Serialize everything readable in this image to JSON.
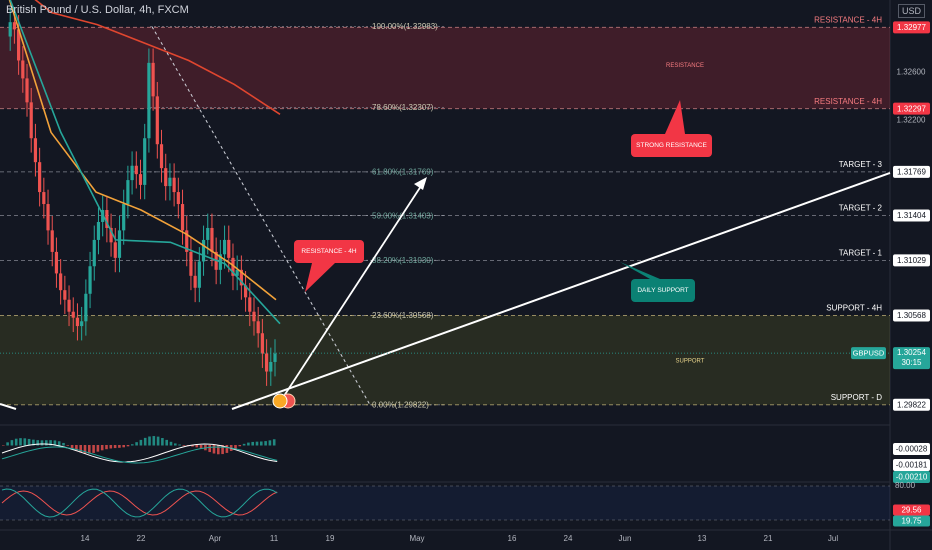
{
  "symbol_title": "British Pound / U.S. Dollar, 4h, FXCM",
  "currency": "USD",
  "chart_data": {
    "type": "candlestick",
    "title": "British Pound / U.S. Dollar, 4h, FXCM",
    "price_axis": {
      "range": [
        1.2972,
        1.3308
      ],
      "ticks": [
        1.326,
        1.322,
        1.318,
        1.314,
        1.31,
        1.306,
        1.302
      ],
      "tick_labels": [
        "1.32600",
        "1.32200",
        "",
        "",
        "",
        "",
        ""
      ]
    },
    "time_axis": {
      "labels": [
        "14",
        "22",
        "Apr",
        "11",
        "19",
        "May",
        "16",
        "24",
        "Jun",
        "13",
        "21",
        "Jul"
      ]
    },
    "price_path": [
      1.329,
      1.3302,
      1.3296,
      1.327,
      1.3255,
      1.3235,
      1.3205,
      1.3185,
      1.316,
      1.315,
      1.3128,
      1.311,
      1.3092,
      1.3078,
      1.307,
      1.306,
      1.3055,
      1.3048,
      1.3052,
      1.3075,
      1.3098,
      1.312,
      1.3135,
      1.3145,
      1.313,
      1.3118,
      1.3105,
      1.3128,
      1.315,
      1.317,
      1.3182,
      1.3175,
      1.3166,
      1.3205,
      1.3268,
      1.324,
      1.32,
      1.318,
      1.3165,
      1.3172,
      1.316,
      1.315,
      1.3128,
      1.311,
      1.309,
      1.308,
      1.3102,
      1.312,
      1.313,
      1.311,
      1.3095,
      1.3108,
      1.312,
      1.3105,
      1.309,
      1.3095,
      1.3082,
      1.3072,
      1.306,
      1.3052,
      1.3042,
      1.3025,
      1.301,
      1.3018,
      1.3025
    ],
    "moving_averages": [
      {
        "color": "#e0462f",
        "values": [
          1.334,
          1.331,
          1.33,
          1.3285,
          1.327,
          1.325,
          1.3225
        ]
      },
      {
        "color": "#f2a23a",
        "values": [
          1.333,
          1.321,
          1.316,
          1.3145,
          1.3125,
          1.31,
          1.307
        ]
      },
      {
        "color": "#26a69a",
        "values": [
          1.333,
          1.321,
          1.312,
          1.3118,
          1.31,
          1.305
        ]
      }
    ],
    "fibonacci_levels": [
      {
        "label": "100.00%(1.32983)",
        "price": 1.32983
      },
      {
        "label": "78.60%(1.32307)",
        "price": 1.32307
      },
      {
        "label": "61.80%(1.31769)",
        "price": 1.31769
      },
      {
        "label": "50.00%(1.31403)",
        "price": 1.31403
      },
      {
        "label": "38.20%(1.31030)",
        "price": 1.3103
      },
      {
        "label": "23.60%(1.30568)",
        "price": 1.30568
      },
      {
        "label": "0.00%(1.29822)",
        "price": 1.29822
      }
    ],
    "levels": [
      {
        "label": "RESISTANCE - 4H",
        "price": 1.32977,
        "tag": "1.32977",
        "tag_bg": "#f23645",
        "line_color": "#ef9a9a"
      },
      {
        "label": "RESISTANCE - 4H",
        "price": 1.32297,
        "tag": "1.32297",
        "tag_bg": "#f23645",
        "line_color": "#ef9a9a"
      },
      {
        "label": "TARGET - 3",
        "price": 1.31769,
        "tag": "1.31769",
        "tag_bg": "#ffffff",
        "line_color": "#b2b5be"
      },
      {
        "label": "TARGET - 2",
        "price": 1.31404,
        "tag": "1.31404",
        "tag_bg": "#ffffff",
        "line_color": "#b2b5be"
      },
      {
        "label": "TARGET - 1",
        "price": 1.31029,
        "tag": "1.31029",
        "tag_bg": "#ffffff",
        "line_color": "#b2b5be"
      },
      {
        "label": "SUPPORT - 4H",
        "price": 1.30568,
        "tag": "1.30568",
        "tag_bg": "#ffffff",
        "line_color": "#e6d28a"
      },
      {
        "label": "SUPPORT - D",
        "price": 1.29822,
        "tag": "1.29822",
        "tag_bg": "#ffffff",
        "line_color": "#e6d28a"
      }
    ],
    "zones": [
      {
        "label": "RESISTANCE",
        "from": 1.32297,
        "to": 1.32977,
        "color": "#f23645"
      },
      {
        "label": "SUPPORT",
        "from": 1.29822,
        "to": 1.30568,
        "color": "#9e9d24"
      }
    ],
    "callouts": [
      {
        "text": "STRONG RESISTANCE",
        "color": "#f23645"
      },
      {
        "text": "RESISTANCE - 4H",
        "color": "#f23645"
      },
      {
        "text": "DAILY SUPPORT",
        "color": "#0b8174"
      }
    ],
    "current_price": {
      "symbol": "GBPUSD",
      "price": "1.30254",
      "countdown": "30:15",
      "value": 1.30254
    },
    "indicator_macd": {
      "tags": [
        {
          "text": "-0.00028",
          "bg": "#ffffff",
          "fg": "#131722"
        },
        {
          "text": "-0.00181",
          "bg": "#ffffff",
          "fg": "#131722"
        },
        {
          "text": "-0.00210",
          "bg": "#26a69a",
          "fg": "#ffffff"
        }
      ]
    },
    "indicator_rsi": {
      "upper": "80.00",
      "tags": [
        {
          "text": "29.56",
          "bg": "#f23645",
          "fg": "#ffffff"
        },
        {
          "text": "19.75",
          "bg": "#26a69a",
          "fg": "#ffffff"
        }
      ]
    }
  }
}
